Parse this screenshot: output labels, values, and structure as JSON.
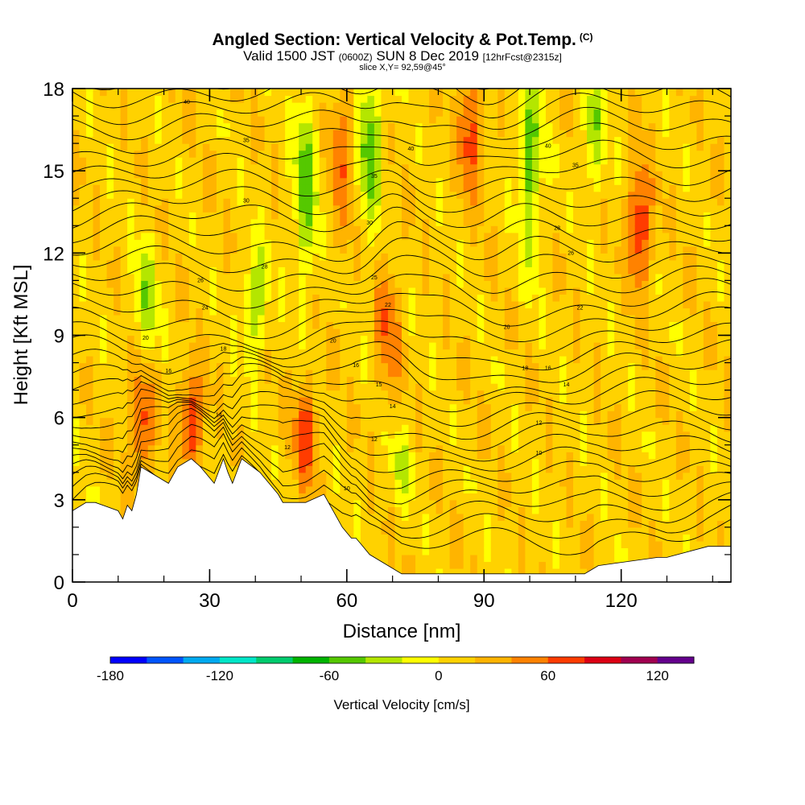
{
  "title": {
    "main": "Angled Section: Vertical Velocity & Pot.Temp.",
    "tag": "(C)"
  },
  "subtitle": {
    "valid": "Valid 1500 JST",
    "utc": "(0600Z)",
    "date": "SUN 8 Dec 2019",
    "fcst": "[12hrFcst@2315z]"
  },
  "slice_label": "slice X,Y= 92,59@45°",
  "chart_data": {
    "type": "heatmap",
    "xlabel": "Distance [nm]",
    "ylabel": "Height [Kft MSL]",
    "xlim": [
      0,
      144
    ],
    "ylim": [
      0,
      18
    ],
    "x_ticks": [
      "0",
      "30",
      "60",
      "90",
      "120"
    ],
    "x_tick_values": [
      0,
      30,
      60,
      90,
      120
    ],
    "y_ticks": [
      "0",
      "3",
      "6",
      "9",
      "12",
      "15",
      "18"
    ],
    "y_tick_values": [
      0,
      3,
      6,
      9,
      12,
      15,
      18
    ],
    "terrain": {
      "x": [
        0,
        3,
        5,
        10,
        11,
        12,
        13,
        14,
        15,
        21,
        23,
        26,
        28,
        31,
        33,
        34,
        35,
        37,
        41,
        45,
        46,
        51,
        55,
        58,
        59,
        61,
        62,
        63,
        65,
        72,
        90,
        112,
        115,
        128,
        130,
        139,
        144
      ],
      "height": [
        2.6,
        2.9,
        2.9,
        2.6,
        2.3,
        2.8,
        2.6,
        3.2,
        4.2,
        3.6,
        4.2,
        4.5,
        4.2,
        3.6,
        4.5,
        4.0,
        3.6,
        4.5,
        4.0,
        3.2,
        2.9,
        2.9,
        3.2,
        2.3,
        2.0,
        1.6,
        1.6,
        1.4,
        1.0,
        0.3,
        0.3,
        0.3,
        0.6,
        0.9,
        0.9,
        1.3,
        1.3
      ]
    },
    "updraft_cores": [
      {
        "x": 15,
        "zmin": 4.6,
        "zmax": 7.0,
        "value": 60
      },
      {
        "x": 26,
        "zmin": 5.0,
        "zmax": 6.8,
        "value": 75
      },
      {
        "x": 51,
        "zmin": 4.3,
        "zmax": 6.5,
        "value": 60
      },
      {
        "x": 59,
        "zmin": 13.5,
        "zmax": 18.0,
        "value": 40
      },
      {
        "x": 69,
        "zmin": 7.5,
        "zmax": 11.0,
        "value": 45
      },
      {
        "x": 87,
        "zmin": 15.0,
        "zmax": 18.0,
        "value": 60
      },
      {
        "x": 124,
        "zmin": 11.5,
        "zmax": 14.5,
        "value": 70
      }
    ],
    "downdraft_cores": [
      {
        "x": 16,
        "zmin": 9.0,
        "zmax": 11.5,
        "value": -45
      },
      {
        "x": 40,
        "zmin": 9.0,
        "zmax": 11.5,
        "value": -50
      },
      {
        "x": 51,
        "zmin": 12.0,
        "zmax": 17.0,
        "value": -60
      },
      {
        "x": 65,
        "zmin": 14.0,
        "zmax": 18.0,
        "value": -65
      },
      {
        "x": 100,
        "zmin": 12.5,
        "zmax": 18.0,
        "value": -60
      },
      {
        "x": 114,
        "zmin": 15.0,
        "zmax": 18.0,
        "value": -45
      },
      {
        "x": 72,
        "zmin": 3.5,
        "zmax": 5.0,
        "value": -30
      }
    ],
    "contour_labels": [
      {
        "x": 25,
        "y": 17.5,
        "text": "40"
      },
      {
        "x": 38,
        "y": 16.1,
        "text": "35"
      },
      {
        "x": 38,
        "y": 13.9,
        "text": "30"
      },
      {
        "x": 42,
        "y": 11.5,
        "text": "28"
      },
      {
        "x": 28,
        "y": 11.0,
        "text": "26"
      },
      {
        "x": 29,
        "y": 10.0,
        "text": "24"
      },
      {
        "x": 16,
        "y": 8.9,
        "text": "20"
      },
      {
        "x": 33,
        "y": 8.5,
        "text": "18"
      },
      {
        "x": 21,
        "y": 7.7,
        "text": "16"
      },
      {
        "x": 32,
        "y": 6.1,
        "text": "14"
      },
      {
        "x": 47,
        "y": 4.9,
        "text": "12"
      },
      {
        "x": 60,
        "y": 3.4,
        "text": "10"
      },
      {
        "x": 66,
        "y": 5.2,
        "text": "12"
      },
      {
        "x": 57,
        "y": 8.8,
        "text": "20"
      },
      {
        "x": 62,
        "y": 7.9,
        "text": "16"
      },
      {
        "x": 67,
        "y": 7.2,
        "text": "15"
      },
      {
        "x": 70,
        "y": 6.4,
        "text": "14"
      },
      {
        "x": 66,
        "y": 11.1,
        "text": "25"
      },
      {
        "x": 69,
        "y": 10.1,
        "text": "22"
      },
      {
        "x": 74,
        "y": 15.8,
        "text": "40"
      },
      {
        "x": 66,
        "y": 14.8,
        "text": "35"
      },
      {
        "x": 65,
        "y": 13.1,
        "text": "30"
      },
      {
        "x": 95,
        "y": 9.3,
        "text": "20"
      },
      {
        "x": 99,
        "y": 7.8,
        "text": "18"
      },
      {
        "x": 104,
        "y": 7.8,
        "text": "16"
      },
      {
        "x": 108,
        "y": 7.2,
        "text": "14"
      },
      {
        "x": 102,
        "y": 5.8,
        "text": "12"
      },
      {
        "x": 102,
        "y": 4.7,
        "text": "10"
      },
      {
        "x": 111,
        "y": 10.0,
        "text": "22"
      },
      {
        "x": 109,
        "y": 12.0,
        "text": "26"
      },
      {
        "x": 106,
        "y": 12.9,
        "text": "28"
      },
      {
        "x": 110,
        "y": 15.2,
        "text": "35"
      },
      {
        "x": 104,
        "y": 15.9,
        "text": "40"
      }
    ]
  },
  "colorbar": {
    "label": "Vertical Velocity [cm/s]",
    "colors": [
      "#0000ff",
      "#0055ff",
      "#00aaf0",
      "#00e6c8",
      "#00cc6e",
      "#00b400",
      "#55c800",
      "#b4e600",
      "#ffff00",
      "#ffd200",
      "#ffb400",
      "#ff8200",
      "#ff3c00",
      "#dc0014",
      "#a00050",
      "#64008c"
    ],
    "tick_labels": [
      "-180",
      "-120",
      "-60",
      "0",
      "60",
      "120"
    ],
    "tick_values": [
      -180,
      -120,
      -60,
      0,
      60,
      120
    ],
    "range": [
      -180,
      140
    ]
  }
}
